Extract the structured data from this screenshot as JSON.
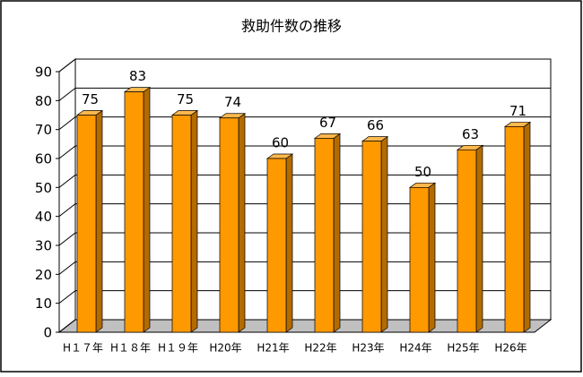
{
  "chart_data": {
    "type": "bar3d",
    "title": "救助件数の推移",
    "categories": [
      "H１７年",
      "H１８年",
      "H１９年",
      "H20年",
      "H21年",
      "H22年",
      "H23年",
      "H24年",
      "H25年",
      "H26年"
    ],
    "values": [
      75,
      83,
      75,
      74,
      60,
      67,
      66,
      50,
      63,
      71
    ],
    "color": "#ff9900",
    "ylim": [
      0,
      90
    ],
    "yticks": [
      0,
      10,
      20,
      30,
      40,
      50,
      60,
      70,
      80,
      90
    ],
    "grid": true
  }
}
